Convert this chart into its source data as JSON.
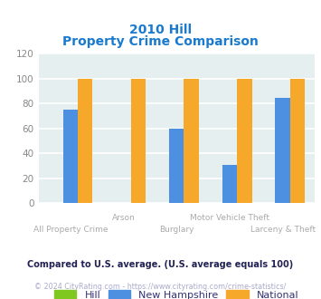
{
  "title_line1": "2010 Hill",
  "title_line2": "Property Crime Comparison",
  "categories": [
    "All Property Crime",
    "Arson",
    "Burglary",
    "Motor Vehicle Theft",
    "Larceny & Theft"
  ],
  "cat_labels_upper": [
    "Arson",
    "Motor Vehicle Theft"
  ],
  "cat_labels_upper_idx": [
    1,
    3
  ],
  "cat_labels_lower": [
    "All Property Crime",
    "Burglary",
    "Larceny & Theft"
  ],
  "cat_labels_lower_idx": [
    0,
    2,
    4
  ],
  "series": {
    "Hill": [
      0,
      0,
      0,
      0,
      0
    ],
    "New Hampshire": [
      75,
      0,
      60,
      31,
      85
    ],
    "National": [
      100,
      100,
      100,
      100,
      100
    ]
  },
  "colors": {
    "Hill": "#7ec820",
    "New Hampshire": "#4d8fe0",
    "National": "#f5a829"
  },
  "ylim": [
    0,
    120
  ],
  "yticks": [
    0,
    20,
    40,
    60,
    80,
    100,
    120
  ],
  "background_color": "#e5eff0",
  "grid_color": "#ffffff",
  "title_color": "#1a7acd",
  "tick_color": "#888888",
  "xlabel_color": "#aaaaaa",
  "legend_label_color": "#333377",
  "footnote1": "Compared to U.S. average. (U.S. average equals 100)",
  "footnote2": "© 2024 CityRating.com - https://www.cityrating.com/crime-statistics/",
  "footnote1_color": "#222255",
  "footnote2_color": "#aaaacc",
  "bar_width": 0.28
}
